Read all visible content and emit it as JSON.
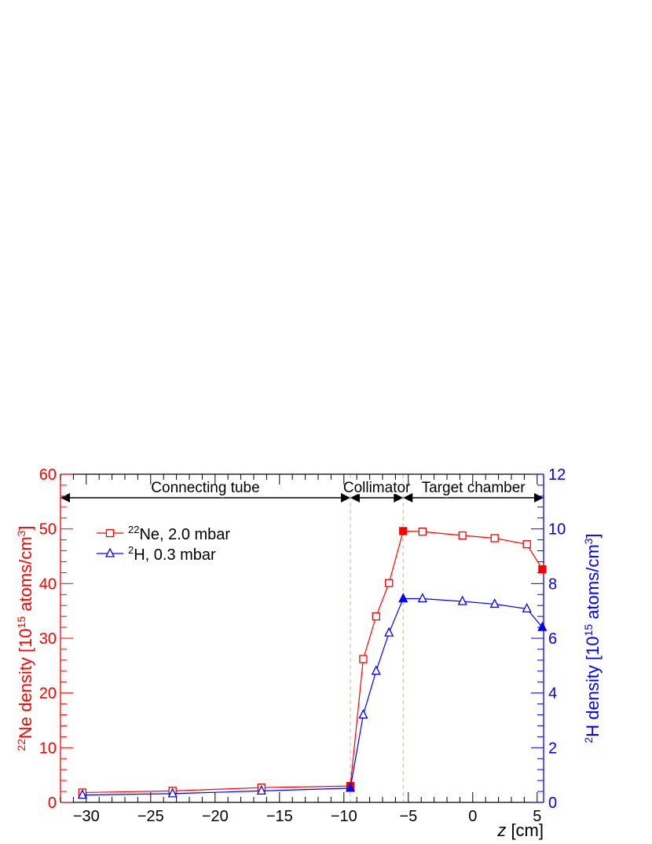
{
  "chart_data": {
    "type": "line",
    "title": "",
    "xlabel": "z [cm]",
    "ylabel_left": {
      "base": "Ne density [10",
      "iso": "22",
      "exp1": "15",
      "mid": " atoms/cm",
      "exp2": "3",
      "end": "]"
    },
    "ylabel_right": {
      "base": "H density [10",
      "iso": "2",
      "exp1": "15",
      "mid": " atoms/cm",
      "exp2": "3",
      "end": "]"
    },
    "xlim": [
      -32,
      5.5
    ],
    "ylim_left": [
      0,
      60
    ],
    "ylim_right": [
      0,
      12
    ],
    "x_ticks": [
      -30,
      -25,
      -20,
      -15,
      -10,
      -5,
      0,
      5
    ],
    "x_tick_labels": [
      "−30",
      "−25",
      "−20",
      "−15",
      "−10",
      "−5",
      "0",
      "5"
    ],
    "y_left_ticks": [
      0,
      10,
      20,
      30,
      40,
      50,
      60
    ],
    "y_left_tick_labels": [
      "0",
      "10",
      "20",
      "30",
      "40",
      "50",
      "60"
    ],
    "y_right_ticks": [
      0,
      2,
      4,
      6,
      8,
      10,
      12
    ],
    "y_right_tick_labels": [
      "0",
      "2",
      "4",
      "6",
      "8",
      "10",
      "12"
    ],
    "grid": false,
    "legend_position": "upper-left",
    "region_boundaries": [
      -9.5,
      -5.4
    ],
    "regions": [
      {
        "label": "Connecting tube",
        "from": -32,
        "to": -9.5
      },
      {
        "label": "Collimator",
        "from": -9.5,
        "to": -5.4
      },
      {
        "label": "Target chamber",
        "from": -5.4,
        "to": 5.5
      }
    ],
    "series": [
      {
        "name": "Ne, 2.0 mbar",
        "name_sup": "22",
        "axis": "left",
        "color": "#ff0000",
        "marker": "square",
        "x": [
          -30.3,
          -23.3,
          -16.4,
          -9.5,
          -8.5,
          -7.5,
          -6.5,
          -5.4,
          -3.9,
          -0.8,
          1.7,
          4.2,
          5.4
        ],
        "y": [
          1.8,
          2.1,
          2.7,
          3.0,
          26.2,
          34.0,
          40.1,
          49.6,
          49.5,
          48.8,
          48.3,
          47.2,
          42.6
        ],
        "filled": [
          false,
          false,
          false,
          true,
          false,
          false,
          false,
          true,
          false,
          false,
          false,
          false,
          true
        ]
      },
      {
        "name": "H, 0.3 mbar",
        "name_sup": "2",
        "axis": "right",
        "color": "#0000ff",
        "marker": "triangle",
        "x": [
          -30.3,
          -23.3,
          -16.4,
          -9.5,
          -8.5,
          -7.5,
          -6.5,
          -5.4,
          -3.9,
          -0.8,
          1.7,
          4.2,
          5.4
        ],
        "y": [
          0.27,
          0.32,
          0.42,
          0.52,
          3.2,
          4.8,
          6.2,
          7.45,
          7.45,
          7.35,
          7.25,
          7.08,
          6.4
        ],
        "filled": [
          false,
          false,
          false,
          true,
          false,
          false,
          false,
          true,
          false,
          false,
          false,
          false,
          true
        ]
      }
    ]
  }
}
